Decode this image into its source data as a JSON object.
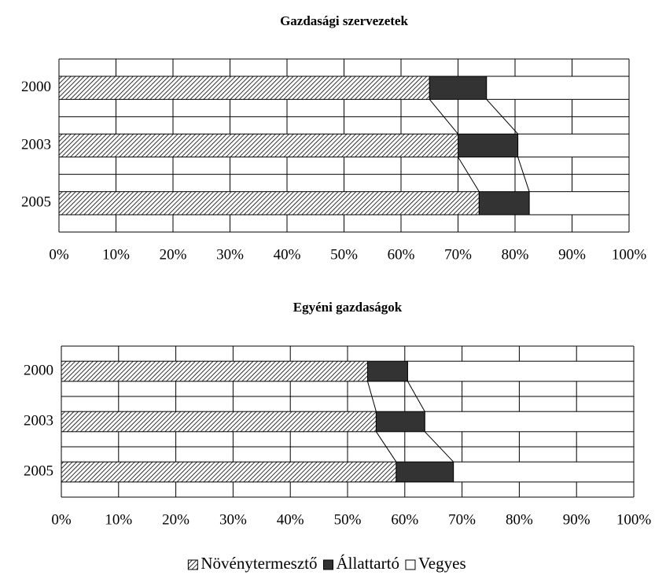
{
  "chart_data": [
    {
      "type": "stacked-bar",
      "orientation": "horizontal",
      "title": "Gazdasági szervezetek",
      "categories": [
        "2000",
        "2003",
        "2005"
      ],
      "series": [
        {
          "name": "Növénytermesztő",
          "color": "#000000",
          "pattern": "hatch",
          "values": [
            65,
            70,
            73.7
          ]
        },
        {
          "name": "Állattartó",
          "color": "#333333",
          "values": [
            10,
            10.5,
            8.8
          ]
        },
        {
          "name": "Vegyes",
          "color": "#ffffff",
          "values": [
            25,
            19.5,
            17.5
          ]
        }
      ],
      "xlim": [
        0,
        100
      ],
      "xticks": [
        {
          "value": 0,
          "label": "0%"
        },
        {
          "value": 10,
          "label": "10%"
        },
        {
          "value": 20,
          "label": "20%"
        },
        {
          "value": 30,
          "label": "30%"
        },
        {
          "value": 40,
          "label": "40%"
        },
        {
          "value": 50,
          "label": "50%"
        },
        {
          "value": 60,
          "label": "60%"
        },
        {
          "value": 70,
          "label": "70%"
        },
        {
          "value": 80,
          "label": "80%"
        },
        {
          "value": 90,
          "label": "90%"
        },
        {
          "value": 100,
          "label": "100%"
        }
      ],
      "grid": true,
      "series_lines": true
    },
    {
      "type": "stacked-bar",
      "orientation": "horizontal",
      "title": "Egyéni gazdaságok",
      "categories": [
        "2000",
        "2003",
        "2005"
      ],
      "series": [
        {
          "name": "Növénytermesztő",
          "color": "#000000",
          "pattern": "hatch",
          "values": [
            53.5,
            55,
            58.5
          ]
        },
        {
          "name": "Állattartó",
          "color": "#333333",
          "values": [
            7,
            8.5,
            10
          ]
        },
        {
          "name": "Vegyes",
          "color": "#ffffff",
          "values": [
            39.5,
            36.5,
            31.5
          ]
        }
      ],
      "xlim": [
        0,
        100
      ],
      "xticks": [
        {
          "value": 0,
          "label": "0%"
        },
        {
          "value": 10,
          "label": "10%"
        },
        {
          "value": 20,
          "label": "20%"
        },
        {
          "value": 30,
          "label": "30%"
        },
        {
          "value": 40,
          "label": "40%"
        },
        {
          "value": 50,
          "label": "50%"
        },
        {
          "value": 60,
          "label": "60%"
        },
        {
          "value": 70,
          "label": "70%"
        },
        {
          "value": 80,
          "label": "80%"
        },
        {
          "value": 90,
          "label": "90%"
        },
        {
          "value": 100,
          "label": "100%"
        }
      ],
      "grid": true,
      "series_lines": true
    }
  ],
  "legend": {
    "position": "bottom"
  }
}
